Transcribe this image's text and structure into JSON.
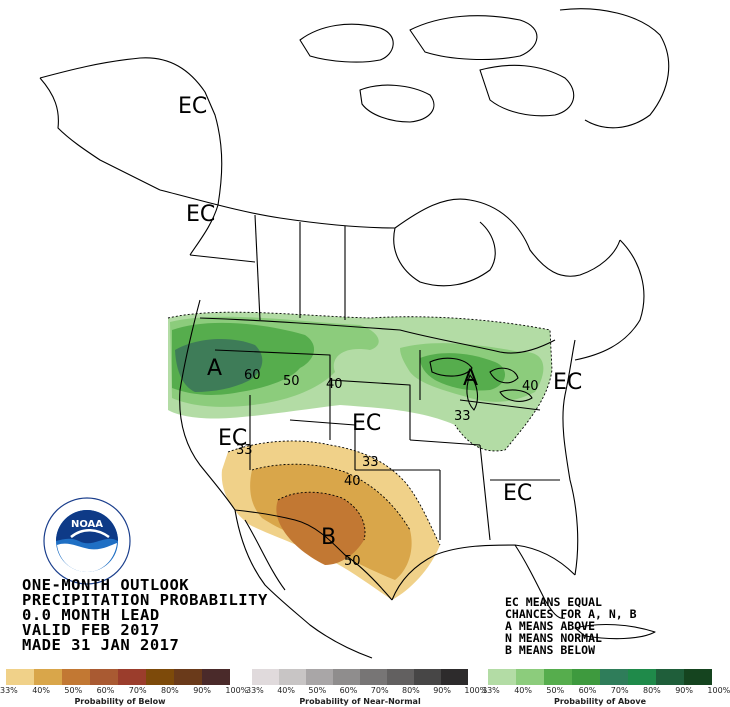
{
  "map": {
    "labels": {
      "ec_alaska": "EC",
      "ec_bc": "EC",
      "ec_southwest": "EC",
      "ec_central": "EC",
      "ec_southeast": "EC",
      "ec_northeast": "EC",
      "a_northwest": "A",
      "a_greatlakes": "A",
      "b_south": "B"
    },
    "contours": {
      "c60": "60",
      "c50": "50",
      "c40_north": "40",
      "c33_ne": "33",
      "c40_ne": "40",
      "c33_sw": "33",
      "c33_south": "33",
      "c40_south": "40",
      "c50_south": "50"
    },
    "colors": {
      "above_33": "#b3dca5",
      "above_40": "#8ccc7c",
      "above_50": "#56ad4d",
      "above_60": "#3e7c58",
      "below_33": "#f0d189",
      "below_40": "#d9a64a",
      "below_50": "#c27833",
      "land_outline": "#000000"
    }
  },
  "title_block": {
    "line1": "ONE-MONTH OUTLOOK",
    "line2": "PRECIPITATION PROBABILITY",
    "line3": "0.0 MONTH LEAD",
    "line4": "VALID FEB 2017",
    "line5": "MADE 31 JAN 2017"
  },
  "legend_text": {
    "line1": "EC MEANS EQUAL",
    "line2": "CHANCES FOR A, N, B",
    "line3": "A MEANS ABOVE",
    "line4": "N MEANS NORMAL",
    "line5": "B MEANS BELOW"
  },
  "scales": {
    "below": {
      "caption": "Probability of Below",
      "colors": [
        "#f0d189",
        "#d9a64a",
        "#c27833",
        "#a95a32",
        "#9b3d2c",
        "#7d4a0a",
        "#6a3a1a",
        "#4a2a2a"
      ],
      "ticks": [
        "33%",
        "40%",
        "50%",
        "60%",
        "70%",
        "80%",
        "90%",
        "100%"
      ]
    },
    "normal": {
      "caption": "Probability of Near-Normal",
      "colors": [
        "#e0dadc",
        "#c8c5c5",
        "#a9a6a7",
        "#8f8d8d",
        "#777575",
        "#626060",
        "#474646",
        "#2d2b2c"
      ],
      "ticks": [
        "33%",
        "40%",
        "50%",
        "60%",
        "70%",
        "80%",
        "90%",
        "100%"
      ]
    },
    "above": {
      "caption": "Probability of Above",
      "colors": [
        "#b3dca5",
        "#8ccc7c",
        "#56ad4d",
        "#3e9a3e",
        "#2f7d5a",
        "#1f8a4a",
        "#1f5e3a",
        "#15441f"
      ],
      "ticks": [
        "33%",
        "40%",
        "50%",
        "60%",
        "70%",
        "80%",
        "90%",
        "100%"
      ]
    }
  },
  "logo": {
    "text": "NOAA",
    "ring_text": "NATIONAL OCEANIC AND ATMOSPHERIC ADMINISTRATION · U.S. DEPARTMENT OF COMMERCE"
  }
}
